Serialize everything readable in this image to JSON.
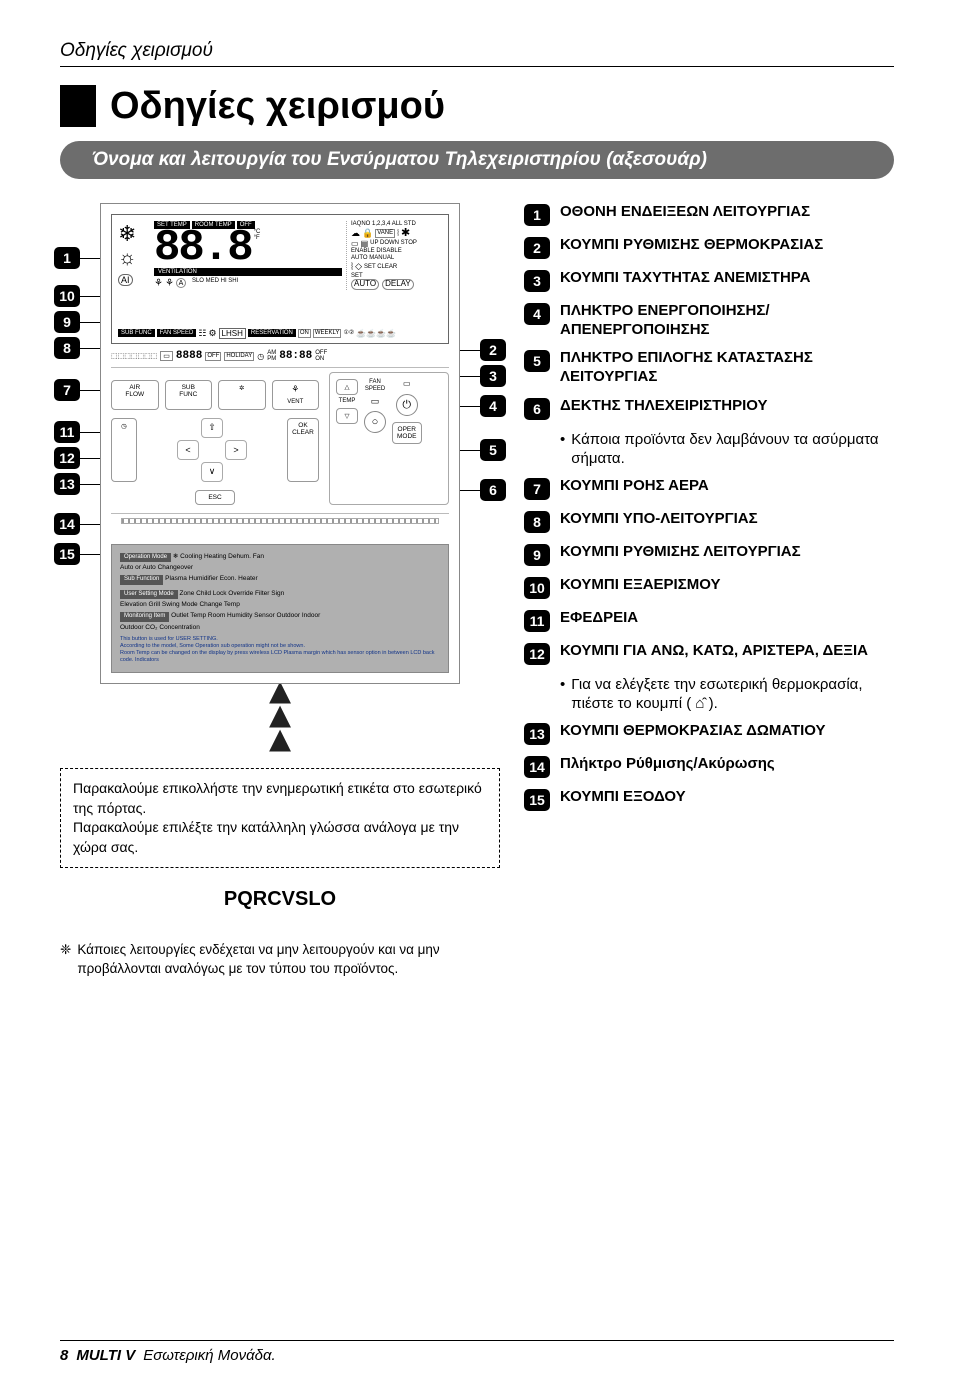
{
  "header_label": "Οδηγίες χειρισμού",
  "title": "Οδηγίες χειρισμού",
  "subtitle": "Όνομα και λειτουργία του Ενσύρματου Τηλεχειριστηρίου (αξεσουάρ)",
  "sticker": {
    "line1": "Παρακαλούμε επικολλήστε την ενημερωτική ετικέτα στο εσωτερικό της πόρτας.",
    "line2": "Παρακαλούμε επιλέξτε την κατάλληλη γλώσσα ανάλογα με την χώρα σας."
  },
  "model": "PQRCVSLO",
  "footnote": "Κάποιες λειτουργίες ενδέχεται να μην λειτουργούν και να μην προβάλλονται αναλόγως με τον τύπου του προϊόντος.",
  "footnote_sym": "❈",
  "items": [
    {
      "n": "1",
      "label": "ΟΘΟΝΗ ΕΝΔΕΙΞΕΩΝ ΛΕΙΤΟΥΡΓΙΑΣ"
    },
    {
      "n": "2",
      "label": "ΚΟΥΜΠΙ ΡΥΘΜΙΣΗΣ ΘΕΡΜΟΚΡΑΣΙΑΣ"
    },
    {
      "n": "3",
      "label": "ΚΟΥΜΠΙ ΤΑΧΥΤΗΤΑΣ ΑΝΕΜΙΣΤΗΡΑ"
    },
    {
      "n": "4",
      "label": "ΠΛΗΚΤΡΟ ΕΝΕΡΓΟΠΟΙΗΣΗΣ/ ΑΠΕΝΕΡΓΟΠΟΙΗΣΗΣ"
    },
    {
      "n": "5",
      "label": "ΠΛΗΚΤΡΟ ΕΠΙΛΟΓΗΣ ΚΑΤΑΣΤΑΣΗΣ ΛΕΙΤΟΥΡΓΙΑΣ"
    },
    {
      "n": "6",
      "label": "ΔΕΚΤΗΣ ΤΗΛΕΧΕΙΡΙΣΤΗΡΙΟΥ",
      "sub": "Κάποια προϊόντα δεν λαμβάνουν τα ασύρματα σήματα."
    },
    {
      "n": "7",
      "label": "ΚΟΥΜΠΙ ΡΟΗΣ ΑΕΡΑ"
    },
    {
      "n": "8",
      "label": "ΚΟΥΜΠΙ ΥΠΟ-ΛΕΙΤΟΥΡΓΙΑΣ"
    },
    {
      "n": "9",
      "label": "ΚΟΥΜΠΙ ΡΥΘΜΙΣΗΣ ΛΕΙΤΟΥΡΓΙΑΣ"
    },
    {
      "n": "10",
      "label": "ΚΟΥΜΠΙ ΕΞΑΕΡΙΣΜΟΥ"
    },
    {
      "n": "11",
      "label": "ΕΦΕΔΡΕΙΑ"
    },
    {
      "n": "12",
      "label": "ΚΟΥΜΠΙ ΓΙΑ ΑΝΩ, ΚΑΤΩ, ΑΡΙΣΤΕΡΑ, ΔΕΞΙΑ",
      "sub": "Για να ελέγξετε την εσωτερική θερμοκρασία, πιέστε το κουμπί ( ⌂̂ )."
    },
    {
      "n": "13",
      "label": "ΚΟΥΜΠΙ ΘΕΡΜΟΚΡΑΣΙΑΣ ΔΩΜΑΤΙΟΥ"
    },
    {
      "n": "14",
      "label": "Πλήκτρο Ρύθμισης/Ακύρωσης"
    },
    {
      "n": "15",
      "label": "ΚΟΥΜΠΙ ΕΞΟΔΟΥ"
    }
  ],
  "lcd": {
    "set_temp": "SET TEMP",
    "room_temp": "ROOM TEMP",
    "big": "88.8",
    "cf": "°C\n°F",
    "iaqno": "IAQNO 1,2,3,4 ALL STD",
    "vane": "VANE",
    "updown": "UP DOWN STOP",
    "enable": "ENABLE DISABLE",
    "auto_manual": "AUTO MANUAL",
    "set_clear": "SET CLEAR",
    "set": "SET",
    "auto": "AUTO",
    "delay": "DELAY",
    "ventilation": "VENTILATION",
    "ai": "AI",
    "slo": "SLO  MED  HI  SHI",
    "subfunc": "SUB FUNC",
    "fanspeed": "FAN SPEED",
    "lhsh": "LHSH",
    "reservation": "RESERVATION",
    "on": "ON",
    "off": "OFF",
    "weekly": "WEEKLY",
    "holiday": "HOLIDAY",
    "small88": "8888",
    "ampm": "AM\nPM",
    "time88": "88:88",
    "offon": "OFF\nON"
  },
  "buttons": {
    "air_flow": "AIR\nFLOW",
    "sub_func": "SUB\nFUNC",
    "swirl": "✲",
    "vent": "VENT",
    "timer": "◷",
    "up": "⇧",
    "down": "∨",
    "left": "<",
    "right": ">",
    "ok_clear": "OK\nCLEAR",
    "esc": "ESC",
    "temp_up": "△",
    "temp_down": "▽",
    "temp_lbl": "TEMP",
    "fan_speed_lbl": "FAN\nSPEED",
    "power": "⏻",
    "oper_mode": "OPER\nMODE",
    "ir": "○"
  },
  "info_panel": {
    "op_mode_hdr": "Operation Mode",
    "op_mode_text": "Cooling   Heating   Dehum.   Fan\nAuto or Auto Changeover",
    "sub_hdr": "Sub Function",
    "sub_text": "Plasma   Humidifier   Econ.   Heater",
    "user_hdr": "User Setting Mode",
    "user_text": "Zone   Child Lock   Override   Filter Sign\nElevation Grill   Swing Mode Change Temp",
    "monitor_hdr": "Monitoring Item",
    "monitor_text": "Outlet Temp   Room Humidity   Sensor   Outdoor   Indoor\nOutdoor   CO₂ Concentration",
    "note": "This button is used for USER SETTING.\nAccording to the model, Some Operation sub operation might not be shown.\nRoom Temp can be changed on the display by press wireless LCD Plasma margin which has sensor option in between LCD back code. Indicators"
  },
  "footer": {
    "page": "8",
    "brand": "MULTI V",
    "unit": "Εσωτερική Μονάδα."
  },
  "colors": {
    "ink": "#000000",
    "pill": "#6d6d6d",
    "panel": "#b0b0b0"
  }
}
